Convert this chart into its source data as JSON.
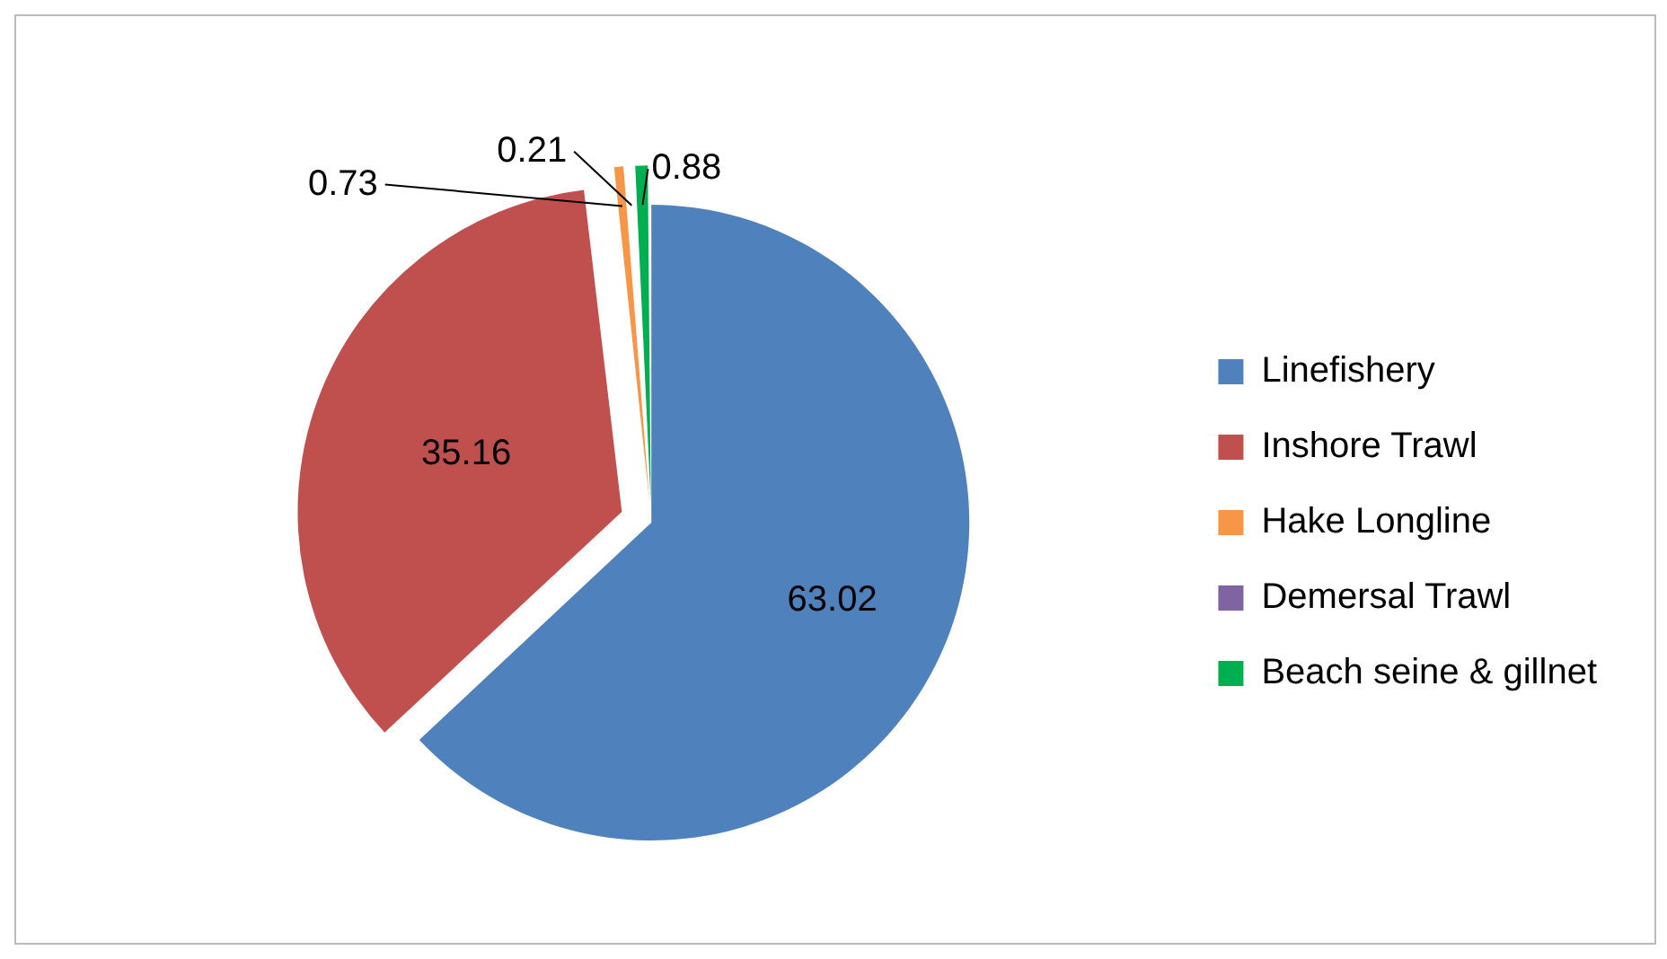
{
  "chart_data": {
    "type": "pie",
    "categories": [
      "Linefishery",
      "Inshore Trawl",
      "Hake Longline",
      "Demersal Trawl",
      "Beach seine & gillnet"
    ],
    "values": [
      63.02,
      35.16,
      0.73,
      0.21,
      0.88
    ],
    "colors": [
      "#4f81bd",
      "#c0504d",
      "#f79646",
      "#8064a2",
      "#00b050"
    ],
    "data_labels": true,
    "legend": "right"
  }
}
